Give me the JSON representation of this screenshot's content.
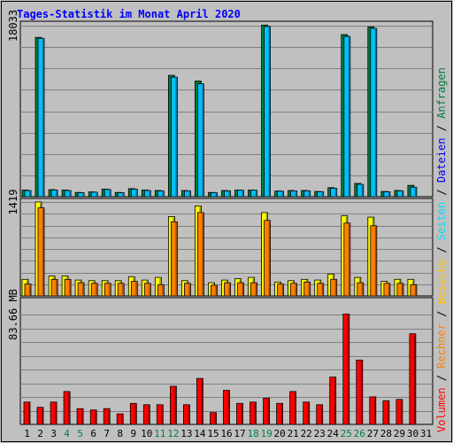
{
  "chart_data": {
    "type": "bar",
    "title": "Tages-Statistik im Monat April 2020",
    "x": [
      "1",
      "2",
      "3",
      "4",
      "5",
      "6",
      "7",
      "8",
      "9",
      "10",
      "11",
      "12",
      "13",
      "14",
      "15",
      "16",
      "17",
      "18",
      "19",
      "20",
      "21",
      "22",
      "23",
      "24",
      "25",
      "26",
      "27",
      "28",
      "29",
      "30",
      "31"
    ],
    "weekend_days": [
      "4",
      "5",
      "11",
      "12",
      "18",
      "19",
      "25",
      "26"
    ],
    "panels": [
      {
        "name": "Anfragen / Dateien",
        "ymax_label": "18033",
        "ymax": 18033,
        "series": [
          {
            "name": "Anfragen",
            "color": "#008040",
            "values": [
              700,
              16800,
              750,
              700,
              450,
              500,
              800,
              450,
              850,
              700,
              650,
              12800,
              650,
              12200,
              450,
              650,
              700,
              700,
              18100,
              600,
              650,
              650,
              550,
              950,
              17100,
              1400,
              17900,
              550,
              650,
              1200,
              0
            ]
          },
          {
            "name": "Dateien",
            "color": "#00c0ff",
            "values": [
              650,
              16700,
              700,
              650,
              420,
              480,
              760,
              420,
              800,
              650,
              620,
              12600,
              620,
              11900,
              420,
              620,
              680,
              680,
              17950,
              580,
              620,
              620,
              520,
              900,
              16900,
              1300,
              17750,
              520,
              620,
              1000,
              0
            ]
          }
        ]
      },
      {
        "name": "Seiten / Besuche / Rechner",
        "ymax_label": "1419",
        "ymax": 1419,
        "series": [
          {
            "name": "Seiten",
            "color": "#00e0ff",
            "values": [
              0,
              0,
              0,
              0,
              0,
              0,
              0,
              0,
              0,
              0,
              0,
              0,
              0,
              0,
              0,
              0,
              0,
              0,
              0,
              0,
              0,
              0,
              0,
              0,
              0,
              0,
              0,
              0,
              0,
              0,
              0
            ]
          },
          {
            "name": "Besuche",
            "color": "#ffff00",
            "values": [
              250,
              1420,
              300,
              300,
              240,
              230,
              230,
              230,
              290,
              240,
              280,
              1200,
              230,
              1360,
              200,
              240,
              260,
              280,
              1260,
              210,
              230,
              250,
              240,
              330,
              1210,
              280,
              1190,
              220,
              250,
              250,
              0
            ]
          },
          {
            "name": "Rechner",
            "color": "#ff8000",
            "values": [
              180,
              1330,
              250,
              250,
              200,
              190,
              190,
              190,
              220,
              190,
              170,
              1120,
              190,
              1260,
              160,
              200,
              200,
              200,
              1140,
              180,
              190,
              210,
              190,
              250,
              1100,
              200,
              1060,
              190,
              190,
              170,
              0
            ]
          }
        ]
      },
      {
        "name": "Volumen",
        "ymax_label": "83.66 MB",
        "ymax": 83.66,
        "series": [
          {
            "name": "Volumen",
            "color": "#ff0000",
            "values": [
              17,
              13,
              17,
              25,
              12,
              11,
              12,
              8,
              16,
              15,
              15,
              29,
              15,
              35,
              9,
              26,
              16,
              17,
              20,
              16,
              25,
              17,
              15,
              36,
              84,
              49,
              21,
              18,
              19,
              69,
              0
            ]
          }
        ]
      }
    ],
    "side_legend": [
      {
        "text": "Anfragen",
        "color": "#008040"
      },
      {
        "text": "Dateien",
        "color": "#0000ff"
      },
      {
        "text": "Seiten",
        "color": "#00e0ff"
      },
      {
        "text": "Besuche",
        "color": "#ffc000"
      },
      {
        "text": "Rechner",
        "color": "#ff8000"
      },
      {
        "text": "Volumen",
        "color": "#ff0000"
      }
    ],
    "separator": " / ",
    "colors": {
      "background": "#c0c0c0",
      "plot": "#c0c0c0",
      "grid": "#808080",
      "title": "#0000ff",
      "weekday_label": "#000000",
      "weekend_label": "#008040"
    }
  }
}
